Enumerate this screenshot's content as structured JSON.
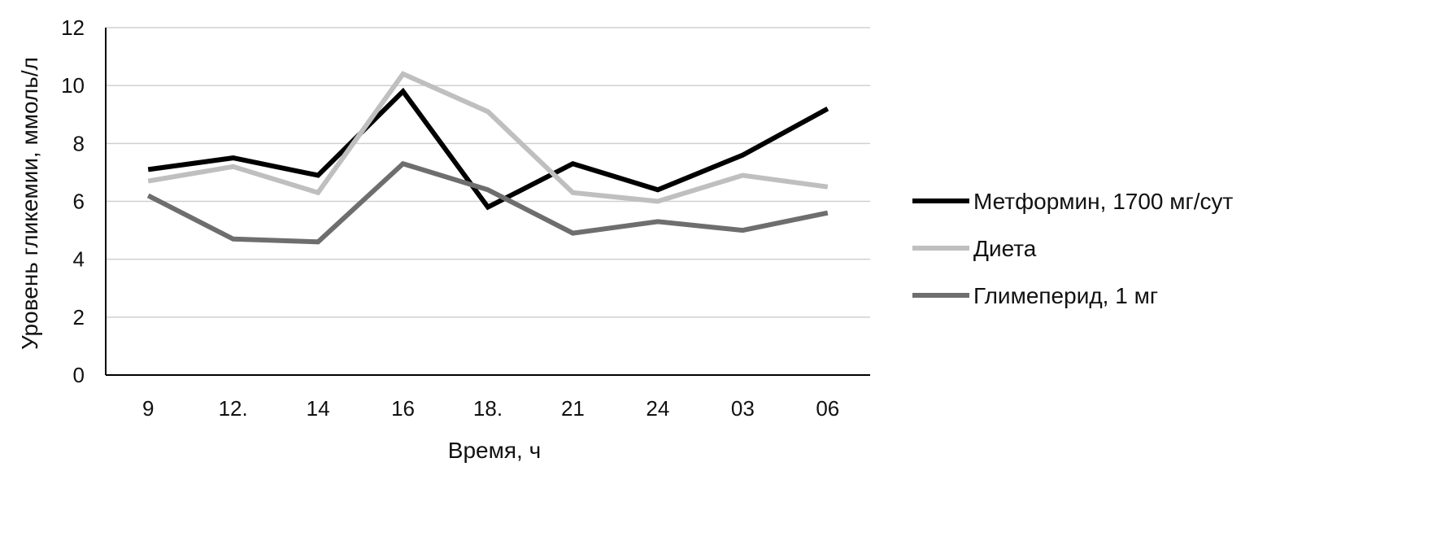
{
  "chart_data": {
    "type": "line",
    "title": "",
    "xlabel": "Время, ч",
    "ylabel": "Уровень гликемии, ммоль/л",
    "categories": [
      "9",
      "12.",
      "14",
      "16",
      "18.",
      "21",
      "24",
      "03",
      "06"
    ],
    "ylim": [
      0,
      12
    ],
    "yticks": [
      0,
      2,
      4,
      6,
      8,
      10,
      12
    ],
    "grid": true,
    "legend_position": "right",
    "series": [
      {
        "name": "Метформин, 1700 мг/сут",
        "color": "#000000",
        "values": [
          7.1,
          7.5,
          6.9,
          9.8,
          5.8,
          7.3,
          6.4,
          7.6,
          9.2
        ]
      },
      {
        "name": "Диета",
        "color": "#bfbfbf",
        "values": [
          6.7,
          7.2,
          6.3,
          10.4,
          9.1,
          6.3,
          6.0,
          6.9,
          6.5
        ]
      },
      {
        "name": "Глимеперид, 1 мг",
        "color": "#6e6e6e",
        "values": [
          6.2,
          4.7,
          4.6,
          7.3,
          6.4,
          4.9,
          5.3,
          5.0,
          5.6
        ]
      }
    ]
  }
}
